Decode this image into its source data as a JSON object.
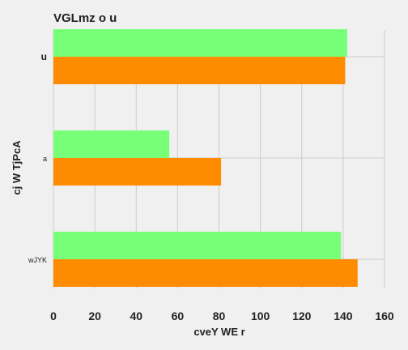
{
  "chart_data": {
    "type": "bar",
    "orientation": "horizontal",
    "title": "VGLmz o u",
    "xlabel": "cveY WE r",
    "ylabel": "cj W   TjPcA",
    "categories": [
      "u",
      "a",
      "wJYK"
    ],
    "series": [
      {
        "values": [
          142,
          56,
          139
        ],
        "color": "#77ff77"
      },
      {
        "values": [
          141,
          81,
          147
        ],
        "color": "#ff8c00"
      }
    ],
    "xlim": [
      0,
      160
    ],
    "xticks": [
      0,
      20,
      40,
      60,
      80,
      100,
      120,
      140,
      160
    ],
    "grid": true,
    "legend": "none"
  }
}
